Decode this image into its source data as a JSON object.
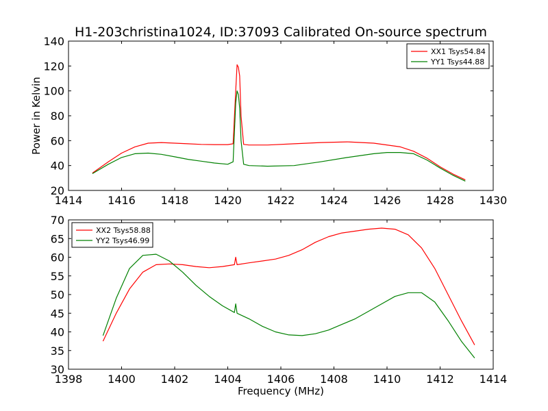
{
  "title": "H1-203christina1024, ID:37093 Calibrated On-source spectrum",
  "colors": {
    "red": "#ff0000",
    "green": "#008000"
  },
  "chart_data": [
    {
      "type": "line",
      "xlabel": "",
      "ylabel": "Power in Kelvin",
      "xlim": [
        1414,
        1430
      ],
      "ylim": [
        20,
        140
      ],
      "xticks": [
        1414,
        1416,
        1418,
        1420,
        1422,
        1424,
        1426,
        1428,
        1430
      ],
      "yticks": [
        20,
        40,
        60,
        80,
        100,
        120,
        140
      ],
      "legend_position": "top-right",
      "series": [
        {
          "name": "XX1 Tsys54.84",
          "color": "#ff0000",
          "x": [
            1414.9,
            1415.5,
            1416.0,
            1416.5,
            1417.0,
            1417.5,
            1418.0,
            1418.5,
            1419.0,
            1419.5,
            1420.0,
            1420.2,
            1420.3,
            1420.35,
            1420.4,
            1420.45,
            1420.5,
            1420.6,
            1420.8,
            1421.5,
            1422.5,
            1423.5,
            1424.5,
            1425.5,
            1426.5,
            1427.0,
            1427.5,
            1428.0,
            1428.5,
            1428.95
          ],
          "y": [
            34,
            43,
            50,
            55,
            58,
            58.5,
            58,
            57.5,
            57,
            56.8,
            56.8,
            57.5,
            100,
            121,
            119,
            112,
            80,
            57,
            56.5,
            56.5,
            57.5,
            58.5,
            59,
            58,
            55,
            51.5,
            46,
            39,
            33,
            28.5
          ]
        },
        {
          "name": "YY1 Tsys44.88",
          "color": "#008000",
          "x": [
            1414.9,
            1415.5,
            1416.0,
            1416.5,
            1417.0,
            1417.5,
            1418.0,
            1418.5,
            1419.0,
            1419.5,
            1420.0,
            1420.2,
            1420.3,
            1420.35,
            1420.4,
            1420.45,
            1420.5,
            1420.6,
            1420.8,
            1421.5,
            1422.5,
            1423.5,
            1424.5,
            1425.5,
            1426.0,
            1426.5,
            1427.0,
            1427.5,
            1428.0,
            1428.5,
            1428.95
          ],
          "y": [
            33.5,
            41,
            46.5,
            49.5,
            50,
            49,
            47,
            45,
            43.5,
            42,
            41,
            43,
            90,
            100,
            97,
            86,
            60,
            41,
            40,
            39.5,
            40,
            43,
            46.5,
            49.5,
            50.5,
            50.5,
            49.5,
            44.5,
            38,
            32,
            27.5
          ]
        }
      ]
    },
    {
      "type": "line",
      "xlabel": "Frequency (MHz)",
      "ylabel": "",
      "xlim": [
        1398,
        1414
      ],
      "ylim": [
        30,
        70
      ],
      "xticks": [
        1398,
        1400,
        1402,
        1404,
        1406,
        1408,
        1410,
        1412,
        1414
      ],
      "yticks": [
        30,
        35,
        40,
        45,
        50,
        55,
        60,
        65,
        70
      ],
      "legend_position": "top-left",
      "series": [
        {
          "name": "XX2 Tsys58.88",
          "color": "#ff0000",
          "x": [
            1399.3,
            1399.8,
            1400.3,
            1400.8,
            1401.3,
            1401.8,
            1402.3,
            1402.8,
            1403.3,
            1403.8,
            1404.25,
            1404.3,
            1404.35,
            1404.8,
            1405.3,
            1405.8,
            1406.3,
            1406.8,
            1407.3,
            1407.8,
            1408.3,
            1408.8,
            1409.3,
            1409.8,
            1410.3,
            1410.8,
            1411.3,
            1411.8,
            1412.3,
            1412.8,
            1413.3
          ],
          "y": [
            37.5,
            45,
            51.5,
            56,
            58,
            58.2,
            58,
            57.5,
            57.2,
            57.5,
            58,
            60,
            58,
            58.5,
            59,
            59.5,
            60.5,
            62,
            64,
            65.5,
            66.5,
            67,
            67.5,
            67.8,
            67.5,
            66,
            62.5,
            57,
            50,
            43,
            36.5
          ]
        },
        {
          "name": "YY2 Tsys46.99",
          "color": "#008000",
          "x": [
            1399.3,
            1399.8,
            1400.3,
            1400.8,
            1401.3,
            1401.8,
            1402.3,
            1402.8,
            1403.3,
            1403.8,
            1404.25,
            1404.3,
            1404.35,
            1404.8,
            1405.3,
            1405.8,
            1406.3,
            1406.8,
            1407.3,
            1407.8,
            1408.3,
            1408.8,
            1409.3,
            1409.8,
            1410.3,
            1410.8,
            1411.3,
            1411.8,
            1412.3,
            1412.8,
            1413.3
          ],
          "y": [
            39,
            49,
            57,
            60.5,
            60.8,
            59,
            56,
            52.5,
            49.5,
            47,
            45.2,
            47.5,
            45,
            43.5,
            41.5,
            40,
            39.2,
            39,
            39.5,
            40.5,
            42,
            43.5,
            45.5,
            47.5,
            49.5,
            50.5,
            50.5,
            48,
            43,
            37.5,
            33
          ]
        }
      ]
    }
  ]
}
